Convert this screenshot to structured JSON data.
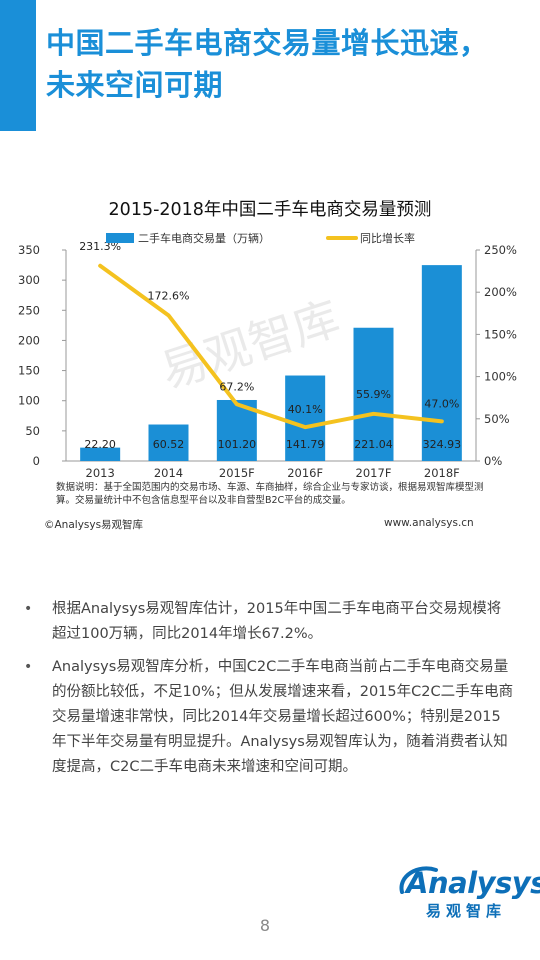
{
  "page": {
    "title_lines": [
      "中国二手车电商交易量增长迅速，",
      "未来空间可期"
    ],
    "page_number": "8"
  },
  "chart_note": "数据说明：基于全国范围内的交易市场、车源、车商抽样，综合企业与专家访谈，根据易观智库模型测算。交易量统计中不包含信息型平台以及非自营型B2C平台的成交量。",
  "copyright": "©Analysys易观智库",
  "website": "www.analysys.cn",
  "watermark": "易观智库",
  "bullets": [
    "根据Analysys易观智库估计，2015年中国二手车电商平台交易规模将超过100万辆，同比2014年增长67.2%。",
    "Analysys易观智库分析，中国C2C二手车电商当前占二手车电商交易量的份额比较低，不足10%；但从发展增速来看，2015年C2C二手车电商交易量增速非常快，同比2014年交易量增长超过600%；特别是2015年下半年交易量有明显提升。Analysys易观智库认为，随着消费者认知度提高，C2C二手车电商未来增速和空间可期。"
  ],
  "logo": {
    "word": "Analysys",
    "cn": "易观智库"
  },
  "colors": {
    "accent": "#1a8fd8",
    "bar": "#1b8fd6",
    "line": "#f4c21f",
    "logo": "#0d6fb8"
  },
  "chart_data": {
    "type": "bar",
    "title": "2015-2018年中国二手车电商交易量预测",
    "categories": [
      "2013",
      "2014",
      "2015F",
      "2016F",
      "2017F",
      "2018F"
    ],
    "series": [
      {
        "name": "二手车电商交易量（万辆）",
        "type": "bar",
        "axis": "left",
        "values": [
          22.2,
          60.52,
          101.2,
          141.79,
          221.04,
          324.93
        ],
        "labels": [
          "22.20",
          "60.52",
          "101.20",
          "141.79",
          "221.04",
          "324.93"
        ]
      },
      {
        "name": "同比增长率",
        "type": "line",
        "axis": "right",
        "values": [
          231.3,
          172.6,
          67.2,
          40.1,
          55.9,
          47.0
        ],
        "labels": [
          "231.3%",
          "172.6%",
          "67.2%",
          "40.1%",
          "55.9%",
          "47.0%"
        ]
      }
    ],
    "ylim": [
      0,
      350
    ],
    "y_ticks": [
      "0",
      "50",
      "100",
      "150",
      "200",
      "250",
      "300",
      "350"
    ],
    "y2lim": [
      0,
      250
    ],
    "y2_ticks": [
      "0%",
      "50%",
      "100%",
      "150%",
      "200%",
      "250%"
    ],
    "legend": "top",
    "grid": false
  }
}
